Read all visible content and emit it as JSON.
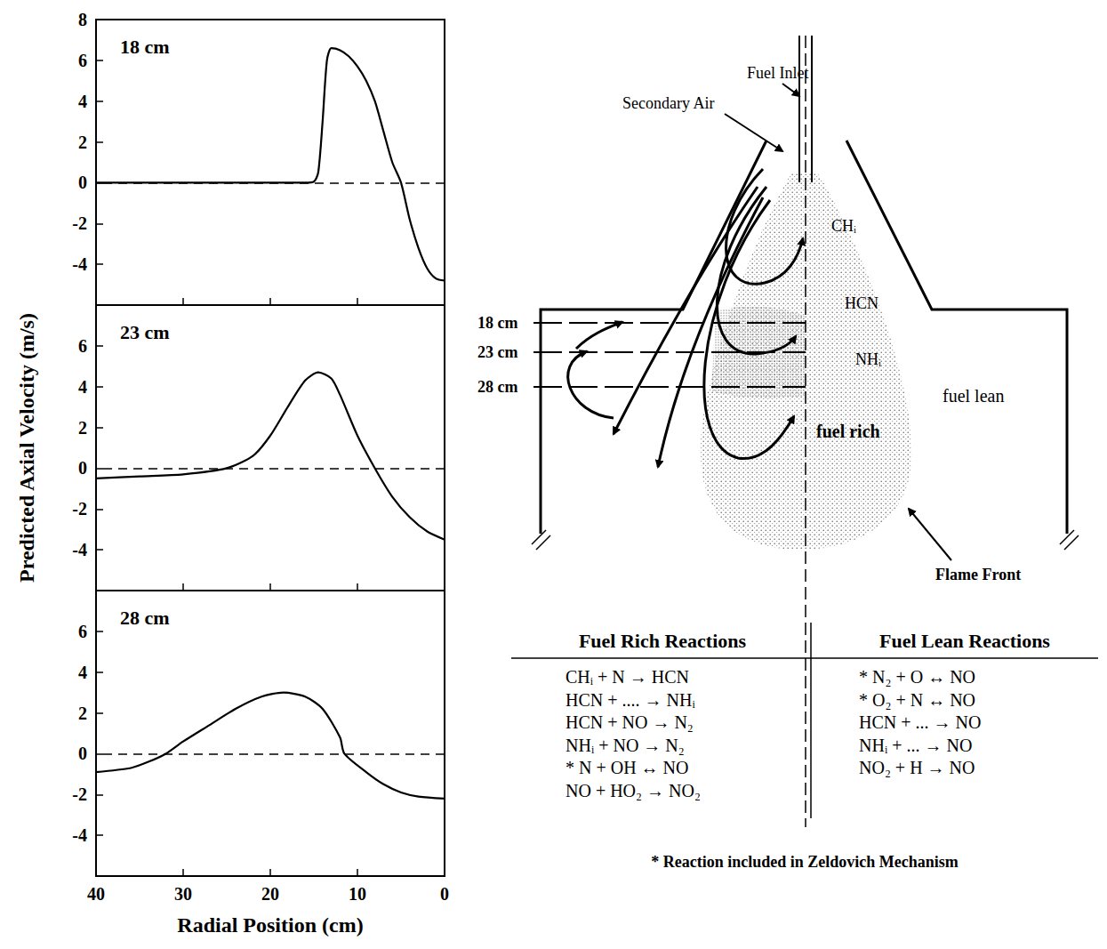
{
  "chart_data": [
    {
      "type": "line",
      "title": "18 cm",
      "color": "#000000",
      "x": [
        40,
        35,
        30,
        25,
        20,
        16,
        15,
        14.5,
        14,
        13.5,
        13,
        12,
        11,
        10,
        9,
        8,
        7,
        6,
        5,
        4,
        3,
        2,
        1,
        0
      ],
      "values": [
        0,
        0,
        0,
        0,
        0,
        0,
        0.05,
        0.5,
        3,
        6,
        6.6,
        6.5,
        6.2,
        5.7,
        5,
        4,
        2.5,
        1,
        0,
        -1.8,
        -3.2,
        -4.2,
        -4.7,
        -4.8
      ],
      "xlim": [
        40,
        0
      ],
      "xticks": [
        40,
        30,
        20,
        10,
        0
      ],
      "ylim": [
        -6,
        8
      ],
      "yticks": [
        -4,
        -2,
        0,
        2,
        4,
        6,
        8
      ],
      "hline": 0,
      "tick_labels": "y"
    },
    {
      "type": "line",
      "title": "23 cm",
      "color": "#000000",
      "x": [
        40,
        35,
        30,
        25,
        22,
        20,
        18,
        16,
        14.5,
        13,
        12,
        10,
        8,
        6,
        4,
        2,
        0
      ],
      "values": [
        -0.5,
        -0.4,
        -0.3,
        0,
        0.6,
        1.6,
        3,
        4.3,
        4.7,
        4.4,
        3.6,
        1.6,
        0,
        -1.4,
        -2.4,
        -3.1,
        -3.5
      ],
      "xlim": [
        40,
        0
      ],
      "xticks": [
        40,
        30,
        20,
        10,
        0
      ],
      "ylim": [
        -6,
        8
      ],
      "yticks": [
        -4,
        -2,
        0,
        2,
        4,
        6
      ],
      "hline": 0,
      "tick_labels": "y"
    },
    {
      "type": "line",
      "title": "28 cm",
      "color": "#000000",
      "x": [
        40,
        36,
        34,
        32,
        30,
        27,
        24,
        21,
        18.5,
        16,
        14,
        12,
        11.5,
        9,
        7,
        5,
        3,
        0
      ],
      "values": [
        -0.9,
        -0.7,
        -0.4,
        0,
        0.6,
        1.4,
        2.2,
        2.8,
        3,
        2.8,
        2.2,
        0.8,
        0,
        -0.9,
        -1.5,
        -1.9,
        -2.1,
        -2.2
      ],
      "xlim": [
        40,
        0
      ],
      "xticks": [
        40,
        30,
        20,
        10,
        0
      ],
      "ylim": [
        -6,
        8
      ],
      "yticks": [
        -4,
        -2,
        0,
        2,
        4,
        6
      ],
      "hline": 0
    }
  ],
  "axis_titles": {
    "x": "Radial Position (cm)",
    "y": "Predicted Axial Velocity (m/s)"
  },
  "diagram": {
    "labels": {
      "fuel_inlet": "Fuel Inlet",
      "secondary_air": "Secondary Air",
      "species": [
        "CHᵢ",
        "HCN",
        "NHᵢ"
      ],
      "fuel_rich": "fuel rich",
      "fuel_lean": "fuel lean",
      "flame_front": "Flame Front"
    },
    "stations": [
      "18 cm",
      "23 cm",
      "28 cm"
    ],
    "reactions": {
      "fuel_rich": {
        "title": "Fuel Rich Reactions",
        "rows": [
          "CHᵢ + N → HCN",
          "HCN + .... → NHᵢ",
          "HCN + NO → N₂",
          "NHᵢ + NO → N₂",
          "* N + OH ↔ NO",
          "NO + HO₂ → NO₂"
        ]
      },
      "fuel_lean": {
        "title": "Fuel Lean Reactions",
        "rows": [
          "* N₂ + O ↔ NO",
          "* O₂ + N ↔ NO",
          "HCN + ... → NO",
          "NHᵢ + ... → NO",
          "NO₂ + H → NO"
        ]
      }
    },
    "footnote": "* Reaction included in Zeldovich Mechanism"
  }
}
